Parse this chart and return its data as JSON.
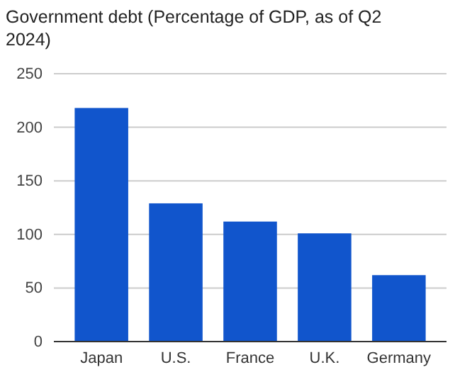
{
  "chart_data": {
    "type": "bar",
    "title": "Government debt (Percentage of GDP, as of Q2 2024)",
    "categories": [
      "Japan",
      "U.S.",
      "France",
      "U.K.",
      "Germany"
    ],
    "values": [
      218,
      129,
      112,
      101,
      62
    ],
    "color": "#1155cc",
    "ylim": [
      0,
      250
    ],
    "yticks": [
      0,
      50,
      100,
      150,
      200,
      250
    ],
    "grid": "y"
  }
}
